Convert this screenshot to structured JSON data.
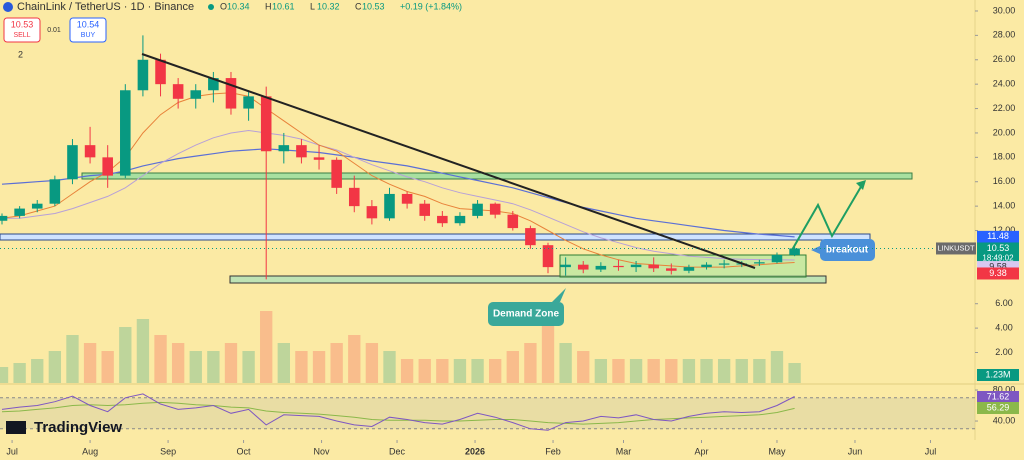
{
  "header": {
    "symbol": "ChainLink / TetherUS · 1D · Binance",
    "ohlc": [
      {
        "key": "O",
        "value": "10.34"
      },
      {
        "key": "H",
        "value": "10.61"
      },
      {
        "key": "L",
        "value": "10.32"
      },
      {
        "key": "C",
        "value": "10.53"
      }
    ],
    "change": "+0.19 (+1.84%)",
    "sell_price": "10.53",
    "sell": "SELL",
    "spread": "0.01",
    "buy_price": "10.54",
    "buy": "BUY",
    "indicators": "2",
    "logo": "TradingView"
  },
  "chart_data": {
    "type": "candlestick",
    "x": [
      -4,
      3,
      10,
      17,
      24,
      31,
      38,
      45,
      52,
      59,
      66,
      73,
      80,
      87,
      94,
      101,
      108,
      115,
      122,
      129,
      136,
      143,
      150,
      157,
      164,
      171,
      178,
      185,
      192,
      199,
      206,
      213,
      220,
      227,
      234,
      241,
      248,
      255,
      262,
      269,
      276,
      283,
      290,
      297,
      304,
      311
    ],
    "open": [
      12.8,
      13.2,
      13.8,
      14.2,
      16.2,
      19.0,
      18.0,
      16.5,
      23.5,
      26.0,
      24.0,
      22.8,
      23.5,
      24.5,
      22.0,
      23.0,
      18.5,
      19.0,
      18.0,
      17.8,
      15.5,
      14.0,
      13.0,
      15.0,
      14.2,
      13.2,
      12.6,
      13.2,
      14.2,
      13.3,
      12.2,
      10.8,
      9.0,
      9.2,
      8.8,
      9.1,
      9.0,
      9.2,
      8.9,
      8.7,
      9.0,
      9.2,
      9.3,
      9.3,
      9.4,
      10.0
    ],
    "high": [
      13.4,
      14.0,
      14.5,
      16.5,
      19.5,
      20.5,
      19.0,
      24.0,
      28.0,
      26.5,
      24.5,
      24.0,
      25.0,
      25.0,
      23.5,
      23.8,
      20.0,
      19.5,
      19.0,
      18.0,
      16.5,
      14.5,
      15.5,
      15.2,
      14.5,
      13.6,
      13.5,
      14.5,
      14.3,
      13.6,
      12.4,
      11.0,
      9.8,
      9.5,
      9.4,
      9.6,
      9.5,
      9.8,
      9.3,
      9.2,
      9.4,
      9.6,
      9.5,
      9.6,
      10.2,
      10.7
    ],
    "low": [
      12.5,
      13.0,
      13.5,
      14.0,
      15.8,
      17.5,
      15.5,
      16.3,
      23.0,
      23.0,
      22.0,
      22.0,
      22.5,
      21.5,
      21.0,
      8.0,
      17.5,
      17.5,
      17.0,
      15.0,
      13.5,
      12.5,
      12.8,
      13.8,
      12.8,
      12.3,
      12.4,
      13.0,
      13.0,
      12.0,
      10.5,
      8.5,
      8.3,
      8.5,
      8.6,
      8.7,
      8.6,
      8.6,
      8.4,
      8.5,
      8.8,
      8.9,
      9.0,
      9.1,
      9.3,
      9.9
    ],
    "close": [
      13.2,
      13.8,
      14.2,
      16.2,
      19.0,
      18.0,
      16.5,
      23.5,
      26.0,
      24.0,
      22.8,
      23.5,
      24.5,
      22.0,
      23.0,
      18.5,
      19.0,
      18.0,
      17.8,
      15.5,
      14.0,
      13.0,
      15.0,
      14.2,
      13.2,
      12.6,
      13.2,
      14.2,
      13.3,
      12.2,
      10.8,
      9.0,
      9.2,
      8.8,
      9.1,
      9.0,
      9.2,
      8.9,
      8.7,
      9.0,
      9.2,
      9.3,
      9.3,
      9.4,
      10.0,
      10.53
    ],
    "ma_fast": [
      13,
      13.2,
      13.6,
      14,
      15,
      16,
      16.8,
      18,
      20,
      21.5,
      22.5,
      23,
      23.2,
      23.3,
      23,
      22,
      21,
      20,
      19,
      18.5,
      17.5,
      16.5,
      15.8,
      15.2,
      14.8,
      14.2,
      13.8,
      13.7,
      13.6,
      13.4,
      12.8,
      12,
      11.2,
      10.5,
      10,
      9.6,
      9.3,
      9.2,
      9.1,
      9,
      9,
      9,
      9.1,
      9.2,
      9.3,
      9.38
    ],
    "ma_mid": [
      13,
      13,
      13.2,
      13.4,
      13.8,
      14.3,
      14.8,
      15.5,
      16.5,
      17.5,
      18.3,
      19,
      19.6,
      20,
      20.2,
      20,
      19.8,
      19.5,
      19,
      18.6,
      18,
      17.4,
      16.9,
      16.4,
      16,
      15.5,
      15.1,
      14.8,
      14.5,
      14.2,
      13.7,
      13.1,
      12.5,
      11.9,
      11.4,
      11,
      10.6,
      10.3,
      10.1,
      9.9,
      9.8,
      9.7,
      9.65,
      9.62,
      9.6,
      9.58
    ],
    "ma_slow": [
      15.8,
      15.9,
      16,
      16.1,
      16.3,
      16.5,
      16.6,
      16.9,
      17.3,
      17.6,
      17.9,
      18.1,
      18.3,
      18.5,
      18.6,
      18.7,
      18.6,
      18.5,
      18.4,
      18.2,
      18,
      17.7,
      17.5,
      17.3,
      17,
      16.7,
      16.4,
      16.1,
      15.8,
      15.5,
      15.1,
      14.7,
      14.3,
      13.9,
      13.6,
      13.3,
      13.0,
      12.8,
      12.6,
      12.4,
      12.2,
      12.0,
      11.85,
      11.7,
      11.6,
      11.48
    ],
    "volume": [
      2,
      2.5,
      3,
      4,
      6,
      5,
      4,
      7,
      8,
      6,
      5,
      4,
      4,
      5,
      4,
      9,
      5,
      4,
      4,
      5,
      6,
      5,
      4,
      3,
      3,
      3,
      3,
      3,
      3,
      4,
      5,
      8,
      5,
      4,
      3,
      3,
      3,
      3,
      3,
      3,
      3,
      3,
      3,
      3,
      4,
      2.5
    ],
    "volume_label": "1.23M",
    "rsi": [
      55,
      58,
      60,
      65,
      72,
      60,
      52,
      70,
      75,
      62,
      55,
      57,
      60,
      50,
      55,
      35,
      48,
      47,
      46,
      40,
      35,
      33,
      45,
      42,
      38,
      36,
      42,
      50,
      45,
      38,
      30,
      28,
      38,
      40,
      46,
      44,
      48,
      42,
      40,
      46,
      50,
      52,
      51,
      52,
      60,
      71.62
    ],
    "rsi_ma": [
      52,
      53,
      55,
      57,
      60,
      61,
      60,
      61,
      63,
      64,
      63,
      61,
      60,
      58,
      57,
      53,
      51,
      50,
      49,
      47,
      45,
      42,
      41,
      41,
      41,
      40,
      40,
      41,
      42,
      42,
      40,
      38,
      37,
      36,
      37,
      38,
      40,
      42,
      43,
      44,
      45,
      46,
      47,
      48,
      51,
      56.29
    ],
    "rsi_bands": [
      30,
      70
    ],
    "xlim": [
      -4.8,
      382.7
    ],
    "xticks": [
      {
        "value": 0,
        "label": "Jul"
      },
      {
        "value": 31,
        "label": "Aug"
      },
      {
        "value": 62,
        "label": "Sep"
      },
      {
        "value": 92,
        "label": "Oct"
      },
      {
        "value": 123,
        "label": "Nov"
      },
      {
        "value": 153,
        "label": "Dec"
      },
      {
        "value": 184,
        "label": "2026"
      },
      {
        "value": 215,
        "label": "Feb"
      },
      {
        "value": 243,
        "label": "Mar"
      },
      {
        "value": 274,
        "label": "Apr"
      },
      {
        "value": 304,
        "label": "May"
      },
      {
        "value": 335,
        "label": "Jun"
      },
      {
        "value": 365,
        "label": "Jul"
      }
    ],
    "ylim": [
      -0.5,
      30.9
    ],
    "yticks": [
      {
        "value": 2,
        "label": "2.00"
      },
      {
        "value": 4,
        "label": "4.00"
      },
      {
        "value": 6,
        "label": "6.00"
      },
      {
        "value": 12,
        "label": "12.00"
      },
      {
        "value": 14,
        "label": "14.00"
      },
      {
        "value": 16,
        "label": "16.00"
      },
      {
        "value": 18,
        "label": "18.00"
      },
      {
        "value": 20,
        "label": "20.00"
      },
      {
        "value": 22,
        "label": "22.00"
      },
      {
        "value": 24,
        "label": "24.00"
      },
      {
        "value": 26,
        "label": "26.00"
      },
      {
        "value": 28,
        "label": "28.00"
      },
      {
        "value": 30,
        "label": "30.00"
      }
    ],
    "volume_lim": [
      0,
      10
    ],
    "rsi_lim": [
      19.4,
      86.5
    ],
    "rsi_ticks": [
      {
        "value": 40,
        "label": "40.00"
      },
      {
        "value": 80,
        "label": "80.00"
      }
    ],
    "symbol_label": "LINKUSDT",
    "countdown": "18:49:02",
    "colors": {
      "up": "#089981",
      "down": "#f23645",
      "ma_fast": "#e8823a",
      "ma_mid": "#b7a0d8",
      "ma_slow": "#5b6fd6",
      "rsi": "#7e57c2",
      "rsi_ma": "#8bb84a"
    },
    "annotations": {
      "breakout": "breakout",
      "demand": "Demand Zone"
    }
  }
}
